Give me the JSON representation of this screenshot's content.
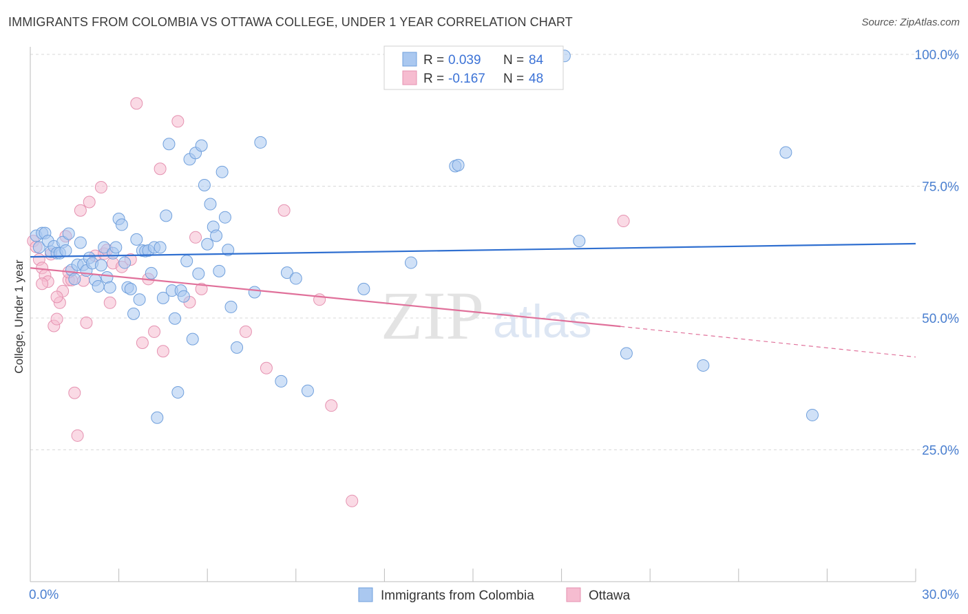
{
  "title": "IMMIGRANTS FROM COLOMBIA VS OTTAWA COLLEGE, UNDER 1 YEAR CORRELATION CHART",
  "source": "Source: ZipAtlas.com",
  "watermark": {
    "zip": "ZIP",
    "atlas": "atlas"
  },
  "colors": {
    "blue_fill": "#aac8f0",
    "blue_stroke": "#6f9fdc",
    "blue_line": "#2f6fd0",
    "pink_fill": "#f6bcd0",
    "pink_stroke": "#e591b0",
    "pink_line": "#e0709a",
    "grid": "#d8d8d8",
    "tick_text": "#4a7fd0"
  },
  "legend": {
    "r_label": "R =",
    "n_label": "N =",
    "series": [
      {
        "r": "0.039",
        "n": "84"
      },
      {
        "r": "-0.167",
        "n": "48"
      }
    ]
  },
  "chart_data": {
    "type": "scatter",
    "title": "IMMIGRANTS FROM COLOMBIA VS OTTAWA COLLEGE, UNDER 1 YEAR CORRELATION CHART",
    "xlabel": "",
    "ylabel": "College, Under 1 year",
    "xlim": [
      0,
      30
    ],
    "ylim": [
      0,
      105
    ],
    "x_tick_labels": [
      "0.0%",
      "30.0%"
    ],
    "y_tick_labels": [
      "100.0%",
      "75.0%",
      "50.0%",
      "25.0%"
    ],
    "y_ticks": [
      100,
      75,
      50,
      25
    ],
    "grid": true,
    "legend_position": "bottom",
    "series": [
      {
        "name": "Immigrants from Colombia",
        "color": "#aac8f0",
        "trend": {
          "x": [
            0,
            30
          ],
          "y": [
            61.6,
            64.1
          ],
          "style": "solid"
        },
        "points": [
          [
            0.2,
            65.6
          ],
          [
            0.3,
            63.4
          ],
          [
            0.4,
            66.1
          ],
          [
            0.5,
            66.1
          ],
          [
            0.6,
            64.6
          ],
          [
            0.7,
            62.6
          ],
          [
            0.8,
            63.6
          ],
          [
            0.9,
            62.3
          ],
          [
            1.0,
            62.3
          ],
          [
            1.1,
            64.4
          ],
          [
            1.2,
            62.8
          ],
          [
            1.3,
            66.0
          ],
          [
            1.4,
            59.1
          ],
          [
            1.5,
            57.4
          ],
          [
            1.6,
            60.1
          ],
          [
            1.7,
            64.3
          ],
          [
            1.8,
            60.1
          ],
          [
            1.9,
            59.0
          ],
          [
            2.0,
            61.4
          ],
          [
            2.1,
            60.4
          ],
          [
            2.2,
            57.2
          ],
          [
            2.3,
            56.0
          ],
          [
            2.4,
            60.0
          ],
          [
            2.5,
            63.4
          ],
          [
            2.6,
            57.7
          ],
          [
            2.7,
            55.8
          ],
          [
            2.8,
            62.3
          ],
          [
            2.9,
            63.4
          ],
          [
            3.0,
            68.8
          ],
          [
            3.1,
            67.7
          ],
          [
            3.2,
            60.5
          ],
          [
            3.3,
            55.8
          ],
          [
            3.4,
            55.5
          ],
          [
            3.5,
            50.8
          ],
          [
            3.6,
            64.9
          ],
          [
            3.7,
            53.5
          ],
          [
            3.8,
            62.8
          ],
          [
            3.9,
            62.7
          ],
          [
            4.0,
            62.8
          ],
          [
            4.1,
            58.5
          ],
          [
            4.2,
            63.4
          ],
          [
            4.3,
            31.1
          ],
          [
            4.4,
            63.4
          ],
          [
            4.5,
            53.8
          ],
          [
            4.6,
            69.4
          ],
          [
            4.7,
            83.0
          ],
          [
            4.8,
            55.2
          ],
          [
            4.9,
            49.9
          ],
          [
            5.0,
            35.9
          ],
          [
            5.1,
            55.2
          ],
          [
            5.2,
            54.1
          ],
          [
            5.3,
            60.8
          ],
          [
            5.4,
            80.1
          ],
          [
            5.5,
            46.0
          ],
          [
            5.6,
            81.3
          ],
          [
            5.7,
            58.4
          ],
          [
            5.8,
            82.7
          ],
          [
            5.9,
            75.2
          ],
          [
            6.0,
            64.0
          ],
          [
            6.1,
            71.6
          ],
          [
            6.2,
            67.3
          ],
          [
            6.3,
            65.6
          ],
          [
            6.4,
            58.9
          ],
          [
            6.5,
            77.7
          ],
          [
            6.6,
            69.1
          ],
          [
            6.7,
            62.9
          ],
          [
            6.8,
            52.1
          ],
          [
            7.0,
            44.4
          ],
          [
            7.8,
            83.3
          ],
          [
            7.6,
            54.9
          ],
          [
            8.7,
            58.6
          ],
          [
            9.4,
            36.2
          ],
          [
            11.3,
            55.5
          ],
          [
            12.9,
            60.5
          ],
          [
            14.4,
            78.8
          ],
          [
            18.1,
            99.7
          ],
          [
            18.6,
            64.6
          ],
          [
            20.2,
            43.3
          ],
          [
            22.8,
            41.0
          ],
          [
            26.5,
            31.6
          ],
          [
            25.6,
            81.4
          ],
          [
            14.5,
            79.0
          ],
          [
            9.0,
            57.5
          ],
          [
            8.5,
            38.0
          ]
        ]
      },
      {
        "name": "Ottawa",
        "color": "#f6bcd0",
        "trend": {
          "x": [
            0,
            20
          ],
          "y": [
            59.5,
            48.4
          ],
          "x_dash": [
            20,
            30
          ],
          "y_dash": [
            48.4,
            42.6
          ],
          "style": "solid+dashed"
        },
        "points": [
          [
            0.1,
            64.6
          ],
          [
            0.2,
            63.5
          ],
          [
            0.3,
            61.1
          ],
          [
            0.4,
            59.5
          ],
          [
            0.5,
            58.1
          ],
          [
            0.6,
            56.9
          ],
          [
            0.7,
            62.1
          ],
          [
            0.8,
            48.5
          ],
          [
            0.9,
            49.8
          ],
          [
            1.0,
            52.9
          ],
          [
            1.1,
            55.1
          ],
          [
            1.2,
            65.5
          ],
          [
            1.3,
            57.2
          ],
          [
            1.4,
            57.2
          ],
          [
            1.5,
            35.8
          ],
          [
            1.6,
            27.7
          ],
          [
            1.7,
            70.4
          ],
          [
            1.8,
            57.1
          ],
          [
            1.9,
            49.1
          ],
          [
            2.0,
            72.0
          ],
          [
            2.2,
            61.8
          ],
          [
            2.4,
            74.8
          ],
          [
            2.5,
            62.2
          ],
          [
            2.6,
            62.9
          ],
          [
            2.7,
            52.9
          ],
          [
            2.8,
            60.4
          ],
          [
            3.1,
            59.7
          ],
          [
            3.4,
            61.1
          ],
          [
            3.6,
            90.7
          ],
          [
            3.8,
            45.3
          ],
          [
            4.0,
            57.4
          ],
          [
            4.2,
            47.4
          ],
          [
            4.4,
            78.3
          ],
          [
            4.5,
            43.7
          ],
          [
            5.0,
            87.3
          ],
          [
            5.4,
            53.0
          ],
          [
            5.6,
            65.3
          ],
          [
            5.8,
            55.5
          ],
          [
            7.3,
            47.4
          ],
          [
            8.0,
            40.5
          ],
          [
            8.6,
            70.4
          ],
          [
            9.8,
            53.5
          ],
          [
            10.2,
            33.4
          ],
          [
            10.9,
            15.3
          ],
          [
            20.1,
            68.4
          ],
          [
            1.3,
            58.7
          ],
          [
            0.4,
            56.5
          ],
          [
            0.9,
            54.0
          ]
        ]
      }
    ]
  }
}
